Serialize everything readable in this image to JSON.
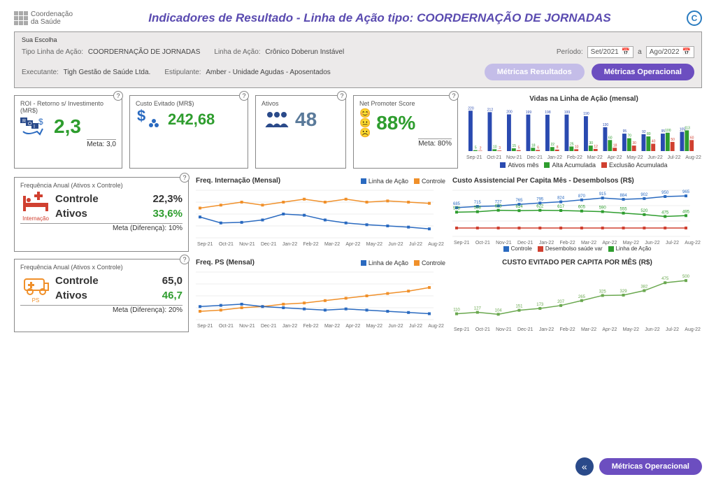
{
  "logo": {
    "line1": "Coordenação",
    "line2": "da Saúde"
  },
  "title": "Indicadores de Resultado -  Linha de Ação tipo: COORDERNAÇÃO DE JORNADAS",
  "filters": {
    "legend": "Sua Escolha",
    "tipo_label": "Tipo Linha de Ação:",
    "tipo_value": "COORDERNAÇÃO DE JORNADAS",
    "linha_label": "Linha de Ação:",
    "linha_value": "Crônico Doberun Instável",
    "periodo_label": "Período:",
    "periodo_from": "Set/2021",
    "periodo_sep": "a",
    "periodo_to": "Ago/2022",
    "executante_label": "Executante:",
    "executante_value": "Tigh Gestão de Saúde Ltda.",
    "estipulante_label": "Estipulante:",
    "estipulante_value": "Amber - Unidade Agudas - Aposentados",
    "btn_resultados": "Métricas Resultados",
    "btn_operacional": "Métricas Operacional"
  },
  "months": [
    "Sep-21",
    "Oct-21",
    "Nov-21",
    "Dec-21",
    "Jan-22",
    "Feb-22",
    "Mar-22",
    "Apr-22",
    "May-22",
    "Jun-22",
    "Jul-22",
    "Aug-22"
  ],
  "kpi": {
    "roi": {
      "label": "ROI - Retorno s/ Investimento (MR$)",
      "value": "2,3",
      "meta": "Meta: 3,0",
      "color": "#2e9d2e"
    },
    "custo": {
      "label": "Custo Evitado (MR$)",
      "value": "242,68",
      "color": "#2e9d2e"
    },
    "ativos": {
      "label": "Ativos",
      "value": "48",
      "color": "#5a7a9a"
    },
    "nps": {
      "label": "Net Promoter Score",
      "value": "88%",
      "meta": "Meta: 80%",
      "color": "#2e9d2e"
    }
  },
  "vidas": {
    "title": "Vidas na Linha de Ação (mensal)",
    "legend": {
      "a": "Ativos mês",
      "b": "Alta Acumulada",
      "c": "Exclusão Acumulada"
    },
    "colors": {
      "a": "#2a4ab0",
      "b": "#2e9d2e",
      "c": "#d04030"
    },
    "ylim": 240,
    "ativos": [
      220,
      212,
      200,
      199,
      198,
      199,
      190,
      130,
      95,
      92,
      95,
      105
    ],
    "alta": [
      5,
      10,
      15,
      18,
      22,
      25,
      30,
      60,
      70,
      80,
      100,
      113
    ],
    "excl": [
      2,
      3,
      5,
      6,
      8,
      10,
      12,
      18,
      30,
      40,
      50,
      60
    ]
  },
  "internacao": {
    "label": "Frequência Anual (Ativos x Controle)",
    "icon_label": "Internação",
    "controle_label": "Controle",
    "controle_value": "22,3%",
    "ativos_label": "Ativos",
    "ativos_value": "33,6%",
    "meta": "Meta (Diferença): 10%"
  },
  "ps": {
    "label": "Frequência Anual (Ativos x Controle)",
    "icon_label": "PS",
    "controle_label": "Controle",
    "controle_value": "65,0",
    "ativos_label": "Ativos",
    "ativos_value": "46,7",
    "meta": "Meta (Diferença): 20%"
  },
  "freq_int": {
    "title": "Freq. Internação (Mensal)",
    "legend": {
      "a": "Linha de Ação",
      "b": "Controle"
    },
    "colors": {
      "a": "#2a6ac0",
      "b": "#f0902a"
    },
    "la": [
      1.15,
      1.05,
      1.06,
      1.1,
      1.2,
      1.18,
      1.1,
      1.05,
      1.02,
      1.0,
      0.98,
      0.95
    ],
    "ct": [
      1.3,
      1.35,
      1.4,
      1.35,
      1.4,
      1.45,
      1.4,
      1.45,
      1.4,
      1.42,
      1.4,
      1.38
    ],
    "ylim": [
      0.8,
      1.6
    ]
  },
  "freq_ps": {
    "title": "Freq. PS (Mensal)",
    "la": [
      4.6,
      4.7,
      4.8,
      4.6,
      4.5,
      4.4,
      4.3,
      4.4,
      4.3,
      4.2,
      4.1,
      4.0
    ],
    "ct": [
      4.2,
      4.3,
      4.5,
      4.6,
      4.8,
      4.9,
      5.1,
      5.3,
      5.5,
      5.7,
      5.9,
      6.2
    ],
    "ylim": [
      3.5,
      7.5
    ]
  },
  "custo_cap": {
    "title": "Custo Assistencial Per Capita Mês - Desembolsos (R$)",
    "legend": {
      "a": "Controle",
      "b": "Desembolso saúde var",
      "c": "Linha de Ação"
    },
    "colors": {
      "a": "#2a6ac0",
      "b": "#d04030",
      "c": "#2e9d2e"
    },
    "controle": [
      685,
      715,
      727,
      765,
      795,
      824,
      870,
      915,
      884,
      902,
      950,
      965
    ],
    "la": [
      578,
      588,
      623,
      614,
      622,
      617,
      605,
      590,
      555,
      520,
      475,
      495
    ],
    "plano": [
      200,
      200,
      200,
      200,
      200,
      200,
      200,
      200,
      200,
      200,
      200,
      200
    ],
    "ylim": [
      0,
      1100
    ]
  },
  "custo_evit": {
    "title": "CUSTO EVITADO PER CAPITA POR MÊS (R$)",
    "color": "#6aa84f",
    "vals": [
      110,
      127,
      104,
      151,
      173,
      207,
      265,
      325,
      329,
      382,
      475,
      500
    ],
    "ylim": [
      0,
      600
    ]
  },
  "footer": {
    "btn": "Métricas Operacional"
  }
}
